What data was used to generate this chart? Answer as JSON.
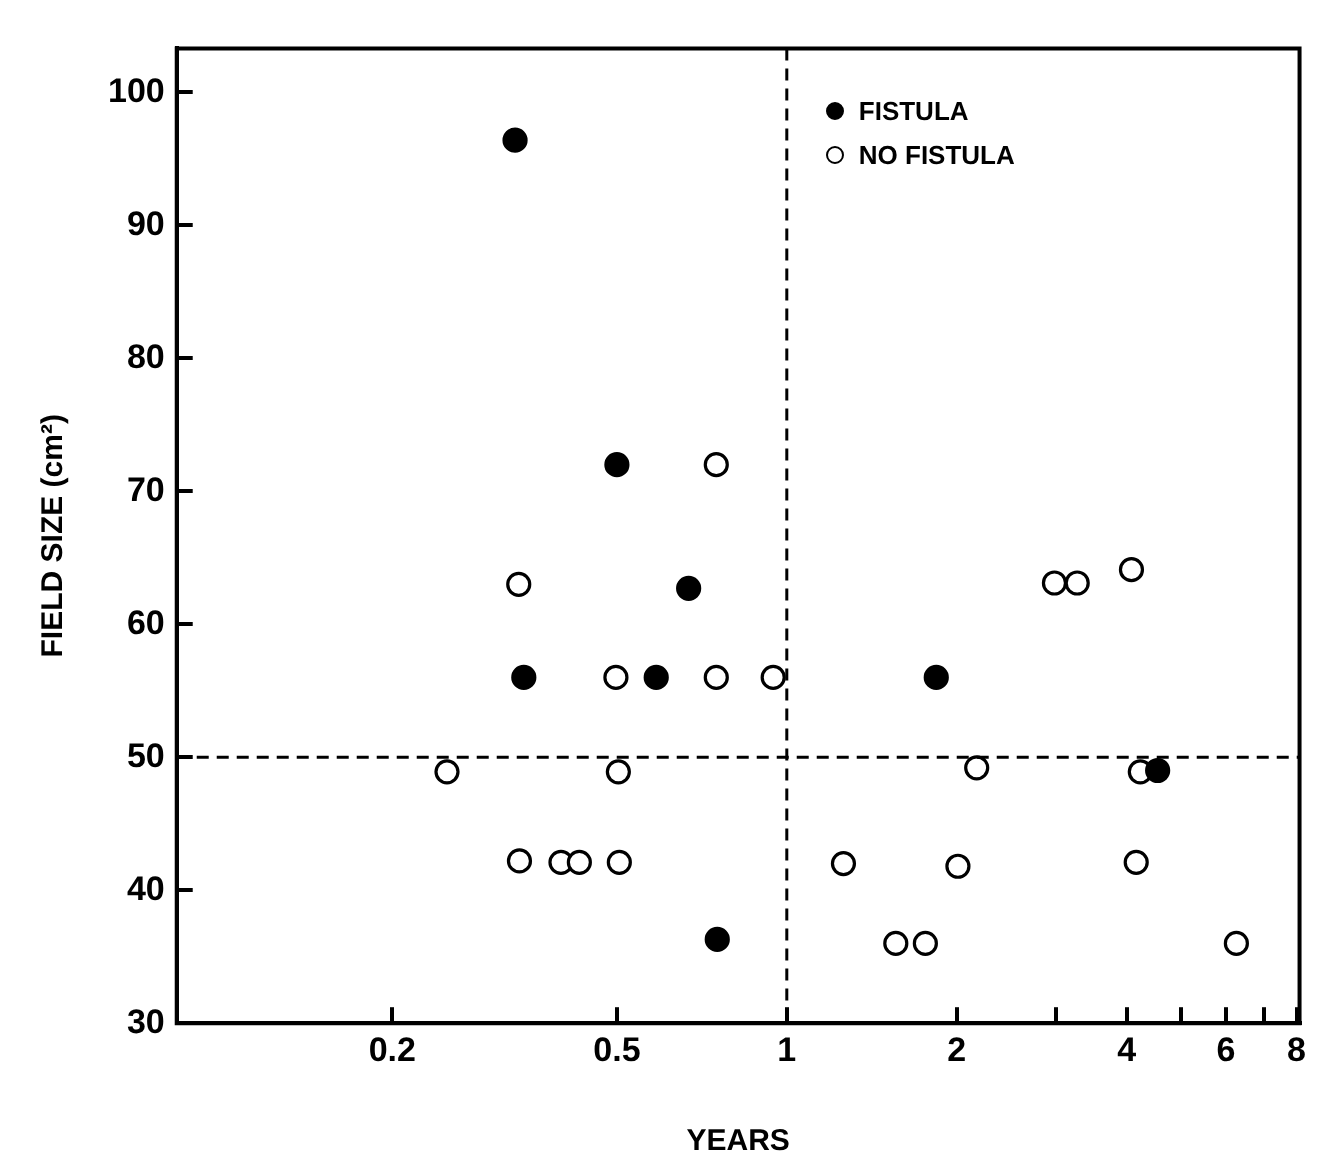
{
  "chart_data": {
    "type": "scatter",
    "xlabel": "YEARS",
    "ylabel": "FIELD SIZE (cm²)",
    "log": "x",
    "xlim": [
      0.083,
      8.1
    ],
    "xticks": [
      0.2,
      0.5,
      1,
      2,
      {
        "value": 3,
        "label": null
      },
      4,
      {
        "value": 5,
        "label": null
      },
      6,
      {
        "value": 7,
        "label": null
      },
      8
    ],
    "ylim": [
      30,
      103.3
    ],
    "yticks": [
      30,
      40,
      50,
      60,
      70,
      80,
      90,
      100
    ],
    "grid": false,
    "legend": "top right",
    "marker": "circle",
    "ref_lines": [
      {
        "axis": "x",
        "value": 1,
        "line_style": "dashed",
        "color": "#000000"
      },
      {
        "axis": "y",
        "value": 50,
        "line_style": "dashed",
        "color": "#000000"
      }
    ],
    "series": [
      {
        "name": "FISTULA",
        "color": "#000000",
        "x": [
          0.33,
          0.342,
          0.5,
          0.587,
          0.67,
          0.753,
          1.84,
          4.54
        ],
        "values": [
          96.4,
          56,
          72,
          56,
          62.7,
          36.3,
          56,
          49
        ]
      },
      {
        "name": "NO FISTULA",
        "color": "#000000",
        "x": [
          0.25,
          0.335,
          0.336,
          0.398,
          0.429,
          0.498,
          0.503,
          0.505,
          0.75,
          0.75,
          0.946,
          1.26,
          1.56,
          1.76,
          2.01,
          2.17,
          2.98,
          3.27,
          4.08,
          4.16,
          4.23,
          6.26
        ],
        "values": [
          48.9,
          63,
          42.2,
          42.1,
          42.1,
          56,
          48.9,
          42.1,
          72,
          56,
          56,
          42,
          36,
          36,
          41.8,
          49.2,
          63.1,
          63.1,
          64.1,
          42.1,
          48.9,
          36
        ]
      }
    ]
  }
}
